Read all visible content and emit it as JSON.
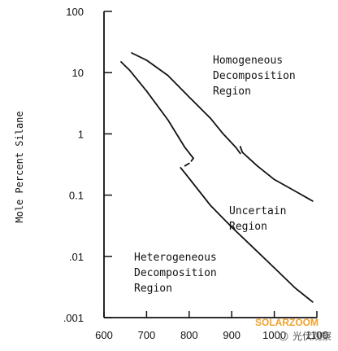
{
  "chart_data": {
    "type": "line",
    "title": "",
    "xlabel": "",
    "ylabel": "Mole Percent Silane",
    "x_scale": "linear",
    "y_scale": "log",
    "xlim": [
      600,
      1100
    ],
    "ylim": [
      0.001,
      100
    ],
    "x_ticks": [
      "600",
      "700",
      "800",
      "900",
      "1000",
      "1100"
    ],
    "y_ticks": [
      {
        "value": 100,
        "label": "100"
      },
      {
        "value": 10,
        "label": "10"
      },
      {
        "value": 1,
        "label": "1"
      },
      {
        "value": 0.1,
        "label": "0.1"
      },
      {
        "value": 0.01,
        "label": ".01"
      },
      {
        "value": 0.001,
        "label": ".001"
      }
    ],
    "grid": false,
    "series": [
      {
        "segments": [
          [
            [
              665,
              21
            ],
            [
              700,
              16
            ],
            [
              750,
              9
            ],
            [
              800,
              4
            ],
            [
              850,
              1.8
            ],
            [
              880,
              1
            ],
            [
              910,
              0.6
            ],
            [
              920,
              0.48
            ]
          ],
          [
            [
              920,
              0.62
            ],
            [
              925,
              0.5
            ]
          ],
          [
            [
              925,
              0.5
            ],
            [
              960,
              0.3
            ],
            [
              1000,
              0.18
            ],
            [
              1050,
              0.115
            ],
            [
              1090,
              0.08
            ]
          ]
        ]
      },
      {
        "segments": [
          [
            [
              640,
              15
            ],
            [
              660,
              11
            ],
            [
              700,
              5
            ],
            [
              750,
              1.7
            ],
            [
              790,
              0.6
            ],
            [
              810,
              0.4
            ]
          ],
          [
            [
              810,
              0.4
            ],
            [
              805,
              0.36
            ]
          ],
          [
            [
              800,
              0.33
            ],
            [
              790,
              0.3
            ]
          ],
          [
            [
              780,
              0.28
            ],
            [
              790,
              0.23
            ],
            [
              850,
              0.068
            ],
            [
              900,
              0.03
            ],
            [
              950,
              0.014
            ],
            [
              1000,
              0.0065
            ],
            [
              1050,
              0.003
            ],
            [
              1090,
              0.0018
            ]
          ]
        ]
      }
    ],
    "annotations": [
      {
        "lines": [
          "Homogeneous",
          "Decomposition",
          "Region"
        ]
      },
      {
        "lines": [
          "Uncertain",
          "Region"
        ]
      },
      {
        "lines": [
          "Heterogeneous",
          "Decomposition",
          "Region"
        ]
      }
    ]
  },
  "watermark": {
    "text": "SOLARZOOM",
    "subtext": "光伏观察"
  }
}
